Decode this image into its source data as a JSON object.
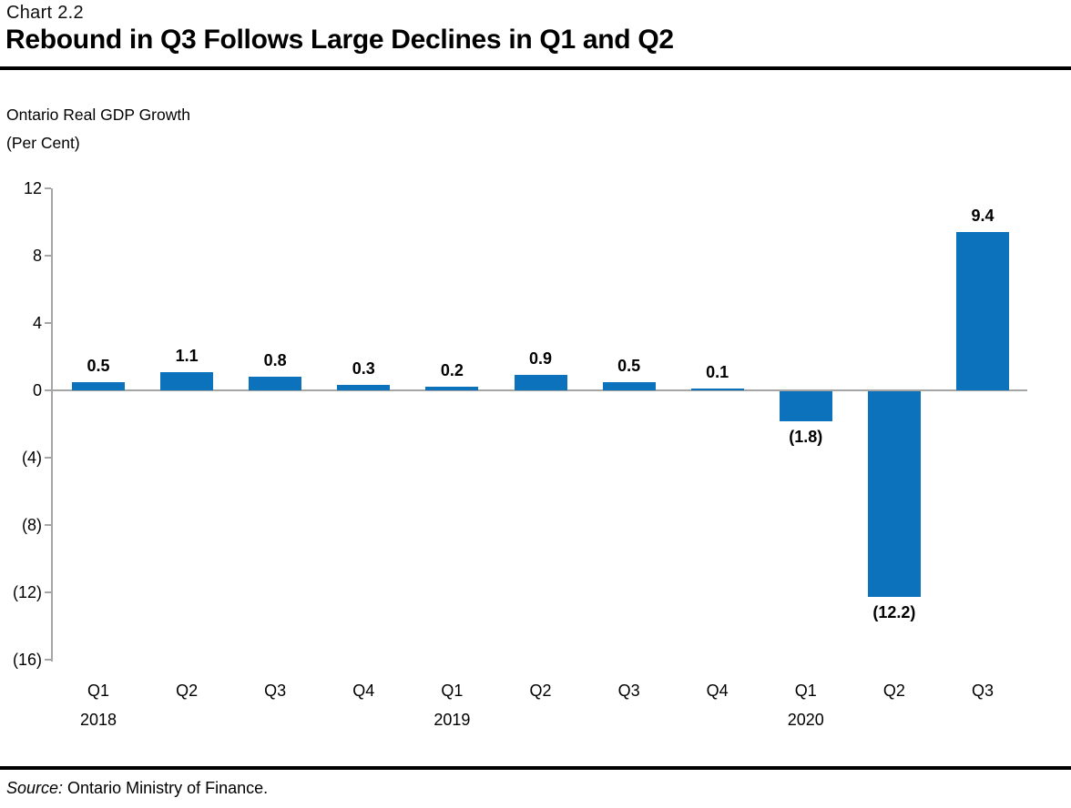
{
  "header": {
    "chart_number": "Chart 2.2",
    "title": "Rebound in Q3 Follows Large Declines in Q1 and Q2"
  },
  "subtitle": {
    "line1": "Ontario Real GDP Growth",
    "line2": "(Per Cent)"
  },
  "source": {
    "label": "Source:",
    "text": " Ontario Ministry of Finance."
  },
  "chart_data": {
    "type": "bar",
    "title": "Rebound in Q3 Follows Large Declines in Q1 and Q2",
    "ylabel": "Ontario Real GDP Growth (Per Cent)",
    "xlabel": "",
    "categories": [
      "Q1 2018",
      "Q2",
      "Q3",
      "Q4",
      "Q1 2019",
      "Q2",
      "Q3",
      "Q4",
      "Q1 2020",
      "Q2",
      "Q3"
    ],
    "values": [
      0.5,
      1.1,
      0.8,
      0.3,
      0.2,
      0.9,
      0.5,
      0.1,
      -1.8,
      -12.2,
      9.4
    ],
    "data_labels": [
      "0.5",
      "1.1",
      "0.8",
      "0.3",
      "0.2",
      "0.9",
      "0.5",
      "0.1",
      "(1.8)",
      "(12.2)",
      "9.4"
    ],
    "y_ticks": [
      {
        "label": "12",
        "value": 12
      },
      {
        "label": "8",
        "value": 8
      },
      {
        "label": "4",
        "value": 4
      },
      {
        "label": "0",
        "value": 0
      },
      {
        "label": "(4)",
        "value": -4
      },
      {
        "label": "(8)",
        "value": -8
      },
      {
        "label": "(12)",
        "value": -12
      },
      {
        "label": "(16)",
        "value": -16
      }
    ],
    "ylim": [
      -16,
      12
    ],
    "grid": false,
    "legend": null,
    "bar_color": "#0d72bc",
    "axis_color": "#a6a6a6",
    "label_color": "#000000"
  }
}
